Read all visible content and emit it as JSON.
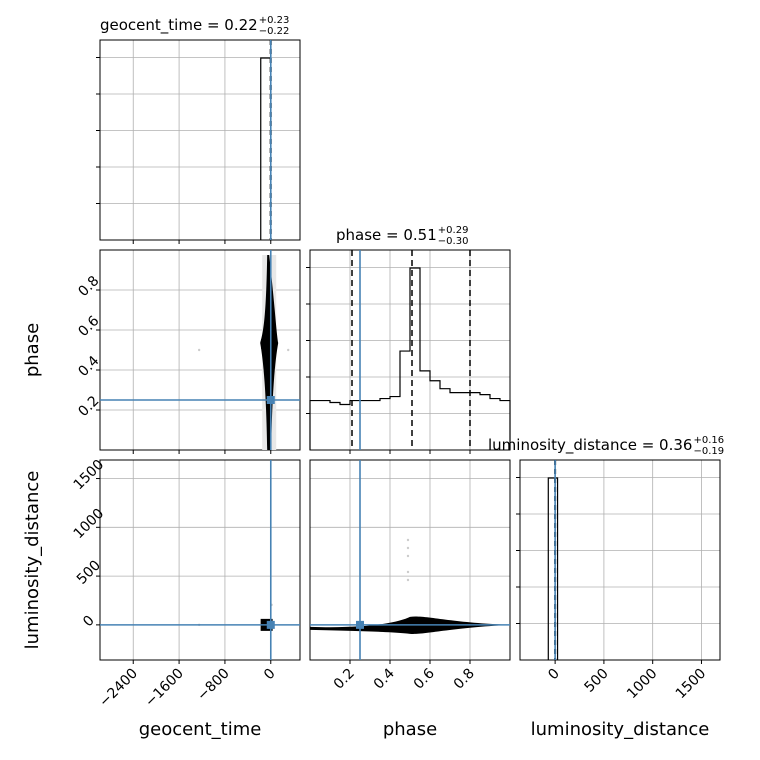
{
  "chart_data": {
    "type": "corner",
    "parameters": [
      "geocent_time",
      "phase",
      "luminosity_distance"
    ],
    "truth_color": "#4682b4",
    "truths": {
      "geocent_time": 0,
      "phase": 0.25,
      "luminosity_distance": 0
    },
    "titles": [
      {
        "param": "geocent_time",
        "main": "geocent_time = 0.22",
        "plus": "+0.23",
        "minus": "−0.22"
      },
      {
        "param": "phase",
        "main": "phase = 0.51",
        "plus": "+0.29",
        "minus": "−0.30"
      },
      {
        "param": "luminosity_distance",
        "main": "luminosity_distance = 0.36",
        "plus": "+0.16",
        "minus": "−0.19"
      }
    ],
    "axis_labels": {
      "x": [
        "geocent_time",
        "phase",
        "luminosity_distance"
      ],
      "y": [
        "phase",
        "luminosity_distance"
      ]
    },
    "ranges": {
      "geocent_time": [
        -2980,
        510
      ],
      "phase": [
        0.0,
        1.0
      ],
      "luminosity_distance": [
        -360,
        1690
      ]
    },
    "ticks": {
      "geocent_time": [
        "−2400",
        "−1600",
        "−800",
        "0"
      ],
      "phase": [
        "0.2",
        "0.4",
        "0.6",
        "0.8"
      ],
      "luminosity_distance": [
        "0",
        "500",
        "1000",
        "1500"
      ]
    },
    "marginals": {
      "geocent_time": {
        "edges": [
          -175,
          0
        ],
        "heights": [
          1.0
        ]
      },
      "phase": {
        "edges": [
          0.0,
          0.05,
          0.1,
          0.15,
          0.2,
          0.25,
          0.3,
          0.35,
          0.4,
          0.45,
          0.5,
          0.55,
          0.6,
          0.65,
          0.7,
          0.75,
          0.8,
          0.85,
          0.9,
          0.95,
          1.0
        ],
        "heights": [
          0.25,
          0.25,
          0.24,
          0.23,
          0.25,
          0.25,
          0.25,
          0.26,
          0.27,
          0.5,
          0.92,
          0.4,
          0.35,
          0.31,
          0.29,
          0.29,
          0.29,
          0.28,
          0.26,
          0.25
        ],
        "quantiles": [
          0.21,
          0.51,
          0.8
        ]
      },
      "luminosity_distance": {
        "edges": [
          -70,
          25
        ],
        "heights": [
          1.0
        ]
      }
    }
  }
}
